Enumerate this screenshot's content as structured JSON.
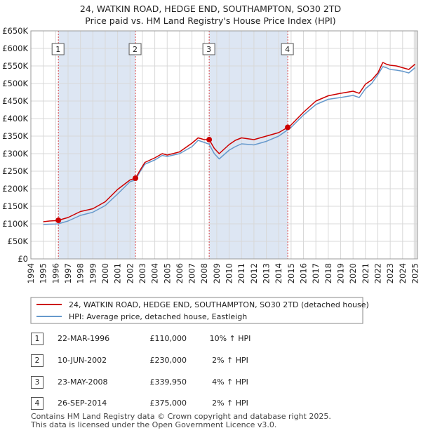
{
  "title": {
    "line1": "24, WATKIN ROAD, HEDGE END, SOUTHAMPTON, SO30 2TD",
    "line2": "Price paid vs. HM Land Registry's House Price Index (HPI)"
  },
  "colors": {
    "price_line": "#cc0000",
    "hpi_line": "#6699cc",
    "highlight": "#dde6f3",
    "marker_line": "#dd4444",
    "grid": "#d8d8d8"
  },
  "chart_data": {
    "type": "line",
    "title": "Price paid vs. HM Land Registry's House Price Index (HPI)",
    "xlim": [
      1994,
      2025.2
    ],
    "ylim": [
      0,
      650000
    ],
    "yticks": [
      0,
      50000,
      100000,
      150000,
      200000,
      250000,
      300000,
      350000,
      400000,
      450000,
      500000,
      550000,
      600000,
      650000
    ],
    "ytick_labels": [
      "£0",
      "£50K",
      "£100K",
      "£150K",
      "£200K",
      "£250K",
      "£300K",
      "£350K",
      "£400K",
      "£450K",
      "£500K",
      "£550K",
      "£600K",
      "£650K"
    ],
    "xticks": [
      1994,
      1995,
      1996,
      1997,
      1998,
      1999,
      2000,
      2001,
      2002,
      2003,
      2004,
      2005,
      2006,
      2007,
      2008,
      2009,
      2010,
      2011,
      2012,
      2013,
      2014,
      2015,
      2016,
      2017,
      2018,
      2019,
      2020,
      2021,
      2022,
      2023,
      2024,
      2025
    ],
    "grid": true,
    "series": [
      {
        "name": "24, WATKIN ROAD, HEDGE END, SOUTHAMPTON, SO30 2TD (detached house)",
        "x": [
          1995.0,
          1995.5,
          1996.0,
          1996.22,
          1997.0,
          1998.0,
          1999.0,
          2000.0,
          2001.0,
          2002.0,
          2002.44,
          2002.8,
          2003.2,
          2004.0,
          2004.6,
          2005.0,
          2006.0,
          2007.0,
          2007.5,
          2008.0,
          2008.39,
          2008.8,
          2009.2,
          2010.0,
          2010.5,
          2011.0,
          2012.0,
          2013.0,
          2014.0,
          2014.73,
          2015.0,
          2016.0,
          2017.0,
          2018.0,
          2019.0,
          2020.0,
          2020.5,
          2021.0,
          2021.5,
          2022.0,
          2022.4,
          2022.7,
          2023.0,
          2023.5,
          2024.0,
          2024.5,
          2025.0
        ],
        "values": [
          106000,
          108000,
          109000,
          110000,
          118000,
          135000,
          143000,
          163000,
          198000,
          225000,
          230000,
          252000,
          275000,
          288000,
          300000,
          296000,
          305000,
          330000,
          345000,
          340000,
          339950,
          315000,
          300000,
          326000,
          338000,
          345000,
          340000,
          350000,
          360000,
          375000,
          382000,
          418000,
          450000,
          465000,
          472000,
          478000,
          472000,
          498000,
          510000,
          530000,
          560000,
          555000,
          552000,
          550000,
          545000,
          540000,
          555000
        ]
      },
      {
        "name": "HPI: Average price, detached house, Eastleigh",
        "x": [
          1995.0,
          1995.5,
          1996.0,
          1996.22,
          1997.0,
          1998.0,
          1999.0,
          2000.0,
          2001.0,
          2002.0,
          2002.44,
          2002.8,
          2003.2,
          2004.0,
          2004.6,
          2005.0,
          2006.0,
          2007.0,
          2007.5,
          2008.0,
          2008.39,
          2008.8,
          2009.2,
          2010.0,
          2010.5,
          2011.0,
          2012.0,
          2013.0,
          2014.0,
          2014.73,
          2015.0,
          2016.0,
          2017.0,
          2018.0,
          2019.0,
          2020.0,
          2020.5,
          2021.0,
          2021.5,
          2022.0,
          2022.4,
          2022.7,
          2023.0,
          2023.5,
          2024.0,
          2024.5,
          2025.0
        ],
        "values": [
          98000,
          99000,
          99500,
          100000,
          108000,
          124000,
          133000,
          152000,
          185000,
          220000,
          225000,
          248000,
          270000,
          282000,
          295000,
          292000,
          300000,
          320000,
          338000,
          332000,
          327000,
          300000,
          285000,
          310000,
          320000,
          328000,
          325000,
          335000,
          350000,
          368000,
          375000,
          410000,
          440000,
          455000,
          460000,
          466000,
          460000,
          485000,
          500000,
          525000,
          548000,
          545000,
          540000,
          538000,
          535000,
          530000,
          545000
        ]
      }
    ],
    "sales": [
      {
        "label": "1",
        "x": 1996.22,
        "value": 110000
      },
      {
        "label": "2",
        "x": 2002.44,
        "value": 230000
      },
      {
        "label": "3",
        "x": 2008.39,
        "value": 339950
      },
      {
        "label": "4",
        "x": 2014.73,
        "value": 375000
      }
    ],
    "legend": [
      "24, WATKIN ROAD, HEDGE END, SOUTHAMPTON, SO30 2TD (detached house)",
      "HPI: Average price, detached house, Eastleigh"
    ],
    "legend_position": "bottom"
  },
  "transactions": [
    {
      "num": "1",
      "date": "22-MAR-1996",
      "price": "£110,000",
      "hpi": "10% ↑ HPI"
    },
    {
      "num": "2",
      "date": "10-JUN-2002",
      "price": "£230,000",
      "hpi": "2% ↑ HPI"
    },
    {
      "num": "3",
      "date": "23-MAY-2008",
      "price": "£339,950",
      "hpi": "4% ↑ HPI"
    },
    {
      "num": "4",
      "date": "26-SEP-2014",
      "price": "£375,000",
      "hpi": "2% ↑ HPI"
    }
  ],
  "footer": {
    "line1": "Contains HM Land Registry data © Crown copyright and database right 2025.",
    "line2": "This data is licensed under the Open Government Licence v3.0."
  }
}
